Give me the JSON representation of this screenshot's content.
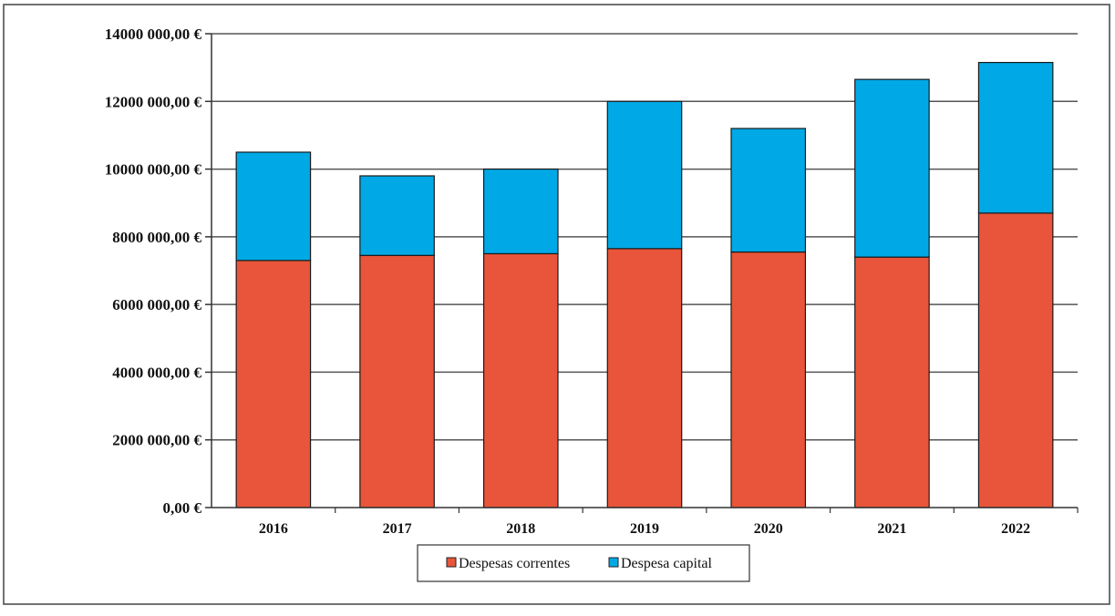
{
  "chart_data": {
    "type": "bar",
    "stacked": true,
    "categories": [
      "2016",
      "2017",
      "2018",
      "2019",
      "2020",
      "2021",
      "2022"
    ],
    "series": [
      {
        "name": "Despesas correntes",
        "color": "#E8553A",
        "values": [
          7300000,
          7450000,
          7500000,
          7650000,
          7550000,
          7400000,
          8700000
        ]
      },
      {
        "name": "Despesa capital",
        "color": "#00A9E6",
        "values": [
          3200000,
          2350000,
          2500000,
          4350000,
          3650000,
          5250000,
          4450000
        ]
      }
    ],
    "ylim": [
      0,
      14000000
    ],
    "yticks": [
      0,
      2000000,
      4000000,
      6000000,
      8000000,
      10000000,
      12000000,
      14000000
    ],
    "ytick_labels": [
      "0,00 €",
      "2000 000,00 €",
      "4000 000,00 €",
      "6000 000,00 €",
      "8000 000,00 €",
      "10000 000,00 €",
      "12000 000,00 €",
      "14000 000,00 €"
    ],
    "grid": true,
    "legend_position": "bottom-center",
    "title": "",
    "xlabel": "",
    "ylabel": ""
  }
}
